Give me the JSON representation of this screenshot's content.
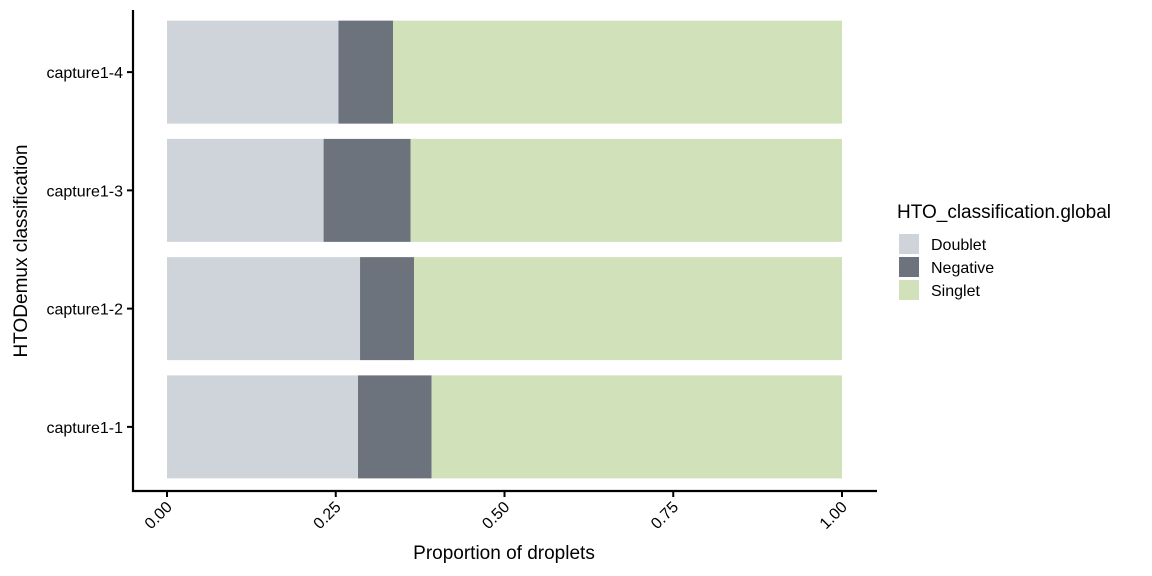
{
  "chart_data": {
    "type": "bar",
    "orientation": "horizontal",
    "stacked": true,
    "categories": [
      "capture1-1",
      "capture1-2",
      "capture1-3",
      "capture1-4"
    ],
    "series": [
      {
        "name": "Doublet",
        "values": [
          0.283,
          0.286,
          0.232,
          0.254
        ],
        "color": "#cfd4db"
      },
      {
        "name": "Negative",
        "values": [
          0.109,
          0.08,
          0.129,
          0.081
        ],
        "color": "#6c737c"
      },
      {
        "name": "Singlet",
        "values": [
          0.608,
          0.634,
          0.639,
          0.665
        ],
        "color": "#d1e1ba"
      }
    ],
    "xlabel": "Proportion of droplets",
    "ylabel": "HTODemux classification",
    "xticks": [
      "0.00",
      "0.25",
      "0.50",
      "0.75",
      "1.00"
    ],
    "xlim": [
      -0.05,
      1.05
    ],
    "legend": {
      "title": "HTO_classification.global",
      "position": "right"
    },
    "grid": false
  }
}
